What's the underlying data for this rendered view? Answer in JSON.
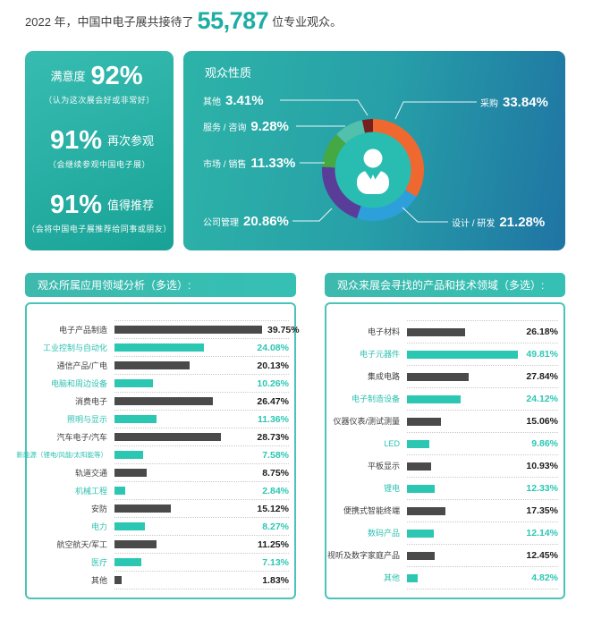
{
  "header": {
    "prefix": "2022 年，中国中电子展共接待了",
    "visitor_count": "55,787",
    "suffix": "位专业观众。"
  },
  "satisfaction": {
    "stats": [
      {
        "pre_label": "满意度",
        "value": "92%",
        "post_label": "",
        "caption": "（认为这次展会好或非常好）"
      },
      {
        "pre_label": "",
        "value": "91%",
        "post_label": "再次参观",
        "caption": "（会继续参观中国电子展）"
      },
      {
        "pre_label": "",
        "value": "91%",
        "post_label": "值得推荐",
        "caption": "（会将中国电子展推荐给同事或朋友）"
      }
    ]
  },
  "colors": {
    "brand_teal": "#1fada3",
    "bar_dark": "#4a4a4b",
    "bar_accent": "#2cc7b3",
    "panel_border": "#4ac3b8"
  },
  "chart_data": [
    {
      "type": "pie",
      "variant": "donut",
      "title": "观众性质",
      "unit": "%",
      "center_icon": "person-icon",
      "segments": [
        {
          "label": "采购",
          "value": 33.84,
          "display": "33.84%",
          "color": "#ee6830"
        },
        {
          "label": "设计 / 研发",
          "value": 21.28,
          "display": "21.28%",
          "color": "#2d9fdb"
        },
        {
          "label": "公司管理",
          "value": 20.86,
          "display": "20.86%",
          "color": "#5a3d99"
        },
        {
          "label": "市场 / 销售",
          "value": 11.33,
          "display": "11.33%",
          "color": "#44a843"
        },
        {
          "label": "服务 / 咨询",
          "value": 9.28,
          "display": "9.28%",
          "color": "#53c0ad"
        },
        {
          "label": "其他",
          "value": 3.41,
          "display": "3.41%",
          "color": "#75201f"
        }
      ]
    },
    {
      "type": "bar",
      "orientation": "horizontal",
      "title": "观众所属应用领域分析（多选）:",
      "xlim": [
        0,
        40
      ],
      "rows": [
        {
          "label": "电子产品制造",
          "value": 39.75,
          "display": "39.75%",
          "accent": false
        },
        {
          "label": "工业控制与自动化",
          "value": 24.08,
          "display": "24.08%",
          "accent": true
        },
        {
          "label": "通信产品/广电",
          "value": 20.13,
          "display": "20.13%",
          "accent": false
        },
        {
          "label": "电脑和周边设备",
          "value": 10.26,
          "display": "10.26%",
          "accent": true
        },
        {
          "label": "消费电子",
          "value": 26.47,
          "display": "26.47%",
          "accent": false
        },
        {
          "label": "照明与显示",
          "value": 11.36,
          "display": "11.36%",
          "accent": true
        },
        {
          "label": "汽车电子/汽车",
          "value": 28.73,
          "display": "28.73%",
          "accent": false
        },
        {
          "label": "新能源（锂电/风能/太阳能等）",
          "value": 7.58,
          "display": "7.58%",
          "accent": true
        },
        {
          "label": "轨道交通",
          "value": 8.75,
          "display": "8.75%",
          "accent": false
        },
        {
          "label": "机械工程",
          "value": 2.84,
          "display": "2.84%",
          "accent": true
        },
        {
          "label": "安防",
          "value": 15.12,
          "display": "15.12%",
          "accent": false
        },
        {
          "label": "电力",
          "value": 8.27,
          "display": "8.27%",
          "accent": true
        },
        {
          "label": "航空航天/军工",
          "value": 11.25,
          "display": "11.25%",
          "accent": false
        },
        {
          "label": "医疗",
          "value": 7.13,
          "display": "7.13%",
          "accent": true
        },
        {
          "label": "其他",
          "value": 1.83,
          "display": "1.83%",
          "accent": false
        }
      ]
    },
    {
      "type": "bar",
      "orientation": "horizontal",
      "title": "观众来展会寻找的产品和技术领域（多选）:",
      "xlim": [
        0,
        50
      ],
      "rows": [
        {
          "label": "电子材料",
          "value": 26.18,
          "display": "26.18%",
          "accent": false
        },
        {
          "label": "电子元器件",
          "value": 49.81,
          "display": "49.81%",
          "accent": true
        },
        {
          "label": "集成电路",
          "value": 27.84,
          "display": "27.84%",
          "accent": false
        },
        {
          "label": "电子制造设备",
          "value": 24.12,
          "display": "24.12%",
          "accent": true
        },
        {
          "label": "仪器仪表/测试测量",
          "value": 15.06,
          "display": "15.06%",
          "accent": false
        },
        {
          "label": "LED",
          "value": 9.86,
          "display": "9.86%",
          "accent": true
        },
        {
          "label": "平板显示",
          "value": 10.93,
          "display": "10.93%",
          "accent": false
        },
        {
          "label": "锂电",
          "value": 12.33,
          "display": "12.33%",
          "accent": true
        },
        {
          "label": "便携式智能终端",
          "value": 17.35,
          "display": "17.35%",
          "accent": false
        },
        {
          "label": "数码产品",
          "value": 12.14,
          "display": "12.14%",
          "accent": true
        },
        {
          "label": "视听及数字家庭产品",
          "value": 12.45,
          "display": "12.45%",
          "accent": false
        },
        {
          "label": "其他",
          "value": 4.82,
          "display": "4.82%",
          "accent": true
        }
      ]
    }
  ]
}
